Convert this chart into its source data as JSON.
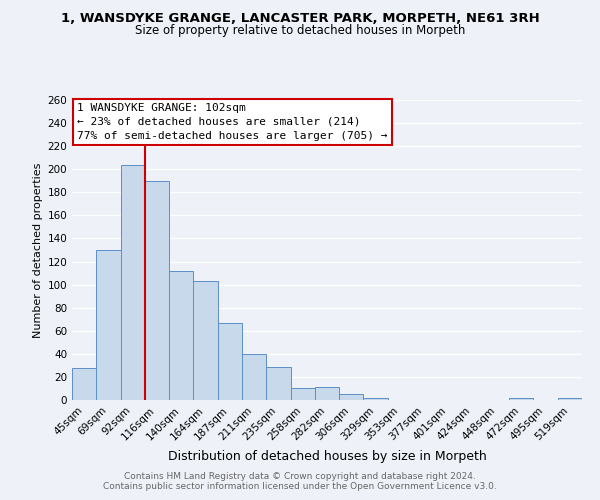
{
  "title1": "1, WANSDYKE GRANGE, LANCASTER PARK, MORPETH, NE61 3RH",
  "title2": "Size of property relative to detached houses in Morpeth",
  "xlabel": "Distribution of detached houses by size in Morpeth",
  "ylabel": "Number of detached properties",
  "categories": [
    "45sqm",
    "69sqm",
    "92sqm",
    "116sqm",
    "140sqm",
    "164sqm",
    "187sqm",
    "211sqm",
    "235sqm",
    "258sqm",
    "282sqm",
    "306sqm",
    "329sqm",
    "353sqm",
    "377sqm",
    "401sqm",
    "424sqm",
    "448sqm",
    "472sqm",
    "495sqm",
    "519sqm"
  ],
  "values": [
    28,
    130,
    204,
    190,
    112,
    103,
    67,
    40,
    29,
    10,
    11,
    5,
    2,
    0,
    0,
    0,
    0,
    0,
    2,
    0,
    2
  ],
  "bar_color": "#c9d9ec",
  "bar_edge_color": "#5b8fc9",
  "ref_line_color": "#cc0000",
  "ref_line_x": 2.5,
  "annotation_title": "1 WANSDYKE GRANGE: 102sqm",
  "annotation_line1": "← 23% of detached houses are smaller (214)",
  "annotation_line2": "77% of semi-detached houses are larger (705) →",
  "annotation_box_color": "#ffffff",
  "annotation_box_edge": "#cc0000",
  "ylim": [
    0,
    260
  ],
  "yticks": [
    0,
    20,
    40,
    60,
    80,
    100,
    120,
    140,
    160,
    180,
    200,
    220,
    240,
    260
  ],
  "footer1": "Contains HM Land Registry data © Crown copyright and database right 2024.",
  "footer2": "Contains public sector information licensed under the Open Government Licence v3.0.",
  "bg_color": "#eef2f8",
  "plot_bg_color": "#eef2f8",
  "grid_color": "#ffffff",
  "title1_fontsize": 9.5,
  "title2_fontsize": 8.5,
  "ylabel_fontsize": 8,
  "xlabel_fontsize": 9,
  "footer_fontsize": 6.5,
  "tick_fontsize": 7.5,
  "annot_fontsize": 8
}
